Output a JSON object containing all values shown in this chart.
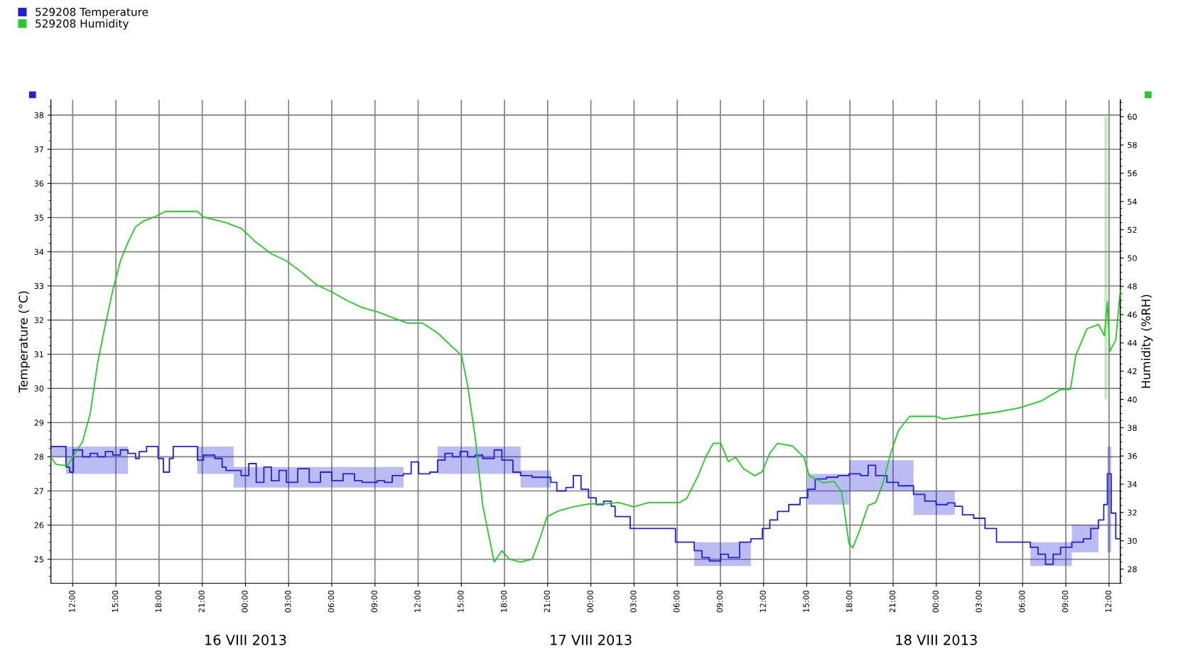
{
  "chart_data": {
    "type": "line",
    "ylabel": "Temperature (°C)",
    "y2label": "Humidity (%RH)",
    "xlim": [
      "2013-08-15T10:29",
      "2013-08-18T12:47"
    ],
    "xticks": [
      {
        "value": "2013-08-15T12:00",
        "label": "12:00"
      },
      {
        "value": "2013-08-15T15:00",
        "label": "15:00"
      },
      {
        "value": "2013-08-15T18:00",
        "label": "18:00"
      },
      {
        "value": "2013-08-15T21:00",
        "label": "21:00"
      },
      {
        "value": "2013-08-16T00:00",
        "label": "00:00"
      },
      {
        "value": "2013-08-16T03:00",
        "label": "03:00"
      },
      {
        "value": "2013-08-16T06:00",
        "label": "06:00"
      },
      {
        "value": "2013-08-16T09:00",
        "label": "09:00"
      },
      {
        "value": "2013-08-16T12:00",
        "label": "12:00"
      },
      {
        "value": "2013-08-16T15:00",
        "label": "15:00"
      },
      {
        "value": "2013-08-16T18:00",
        "label": "18:00"
      },
      {
        "value": "2013-08-16T21:00",
        "label": "21:00"
      },
      {
        "value": "2013-08-17T00:00",
        "label": "00:00"
      },
      {
        "value": "2013-08-17T03:00",
        "label": "03:00"
      },
      {
        "value": "2013-08-17T06:00",
        "label": "06:00"
      },
      {
        "value": "2013-08-17T09:00",
        "label": "09:00"
      },
      {
        "value": "2013-08-17T12:00",
        "label": "12:00"
      },
      {
        "value": "2013-08-17T15:00",
        "label": "15:00"
      },
      {
        "value": "2013-08-17T18:00",
        "label": "18:00"
      },
      {
        "value": "2013-08-17T21:00",
        "label": "21:00"
      },
      {
        "value": "2013-08-18T00:00",
        "label": "00:00"
      },
      {
        "value": "2013-08-18T03:00",
        "label": "03:00"
      },
      {
        "value": "2013-08-18T06:00",
        "label": "06:00"
      },
      {
        "value": "2013-08-18T09:00",
        "label": "09:00"
      },
      {
        "value": "2013-08-18T12:00",
        "label": "12:00"
      }
    ],
    "ylim": [
      24.3,
      38.45
    ],
    "yticks": [
      25,
      26,
      27,
      28,
      29,
      30,
      31,
      32,
      33,
      34,
      35,
      36,
      37,
      38
    ],
    "y2lim": [
      27,
      61.2
    ],
    "y2ticks": [
      28,
      30,
      32,
      34,
      36,
      38,
      40,
      42,
      44,
      46,
      48,
      50,
      52,
      54,
      56,
      58,
      60
    ],
    "grid": true,
    "legend": "top left",
    "marker": "none",
    "line_style": "solid",
    "annotations": [
      "16 VIII 2013",
      "17 VIII 2013",
      "18 VIII 2013"
    ],
    "series": [
      {
        "name": "529208 Temperature",
        "color": "#2020dd",
        "type": "step",
        "x": [
          "2013-08-15T10:29",
          "2013-08-15T10:51",
          "2013-08-15T11:22",
          "2013-08-15T11:32",
          "2013-08-15T11:47",
          "2013-08-15T12:03",
          "2013-08-15T12:41",
          "2013-08-15T13:13",
          "2013-08-15T13:44",
          "2013-08-15T14:16",
          "2013-08-15T14:47",
          "2013-08-15T15:19",
          "2013-08-15T15:50",
          "2013-08-15T16:22",
          "2013-08-15T16:37",
          "2013-08-15T17:08",
          "2013-08-15T17:40",
          "2013-08-15T17:56",
          "2013-08-15T18:18",
          "2013-08-15T18:43",
          "2013-08-15T18:59",
          "2013-08-15T20:17",
          "2013-08-15T20:40",
          "2013-08-15T21:05",
          "2013-08-15T21:52",
          "2013-08-15T22:23",
          "2013-08-15T22:39",
          "2013-08-15T23:11",
          "2013-08-15T23:42",
          "2013-08-16T00:14",
          "2013-08-16T00:45",
          "2013-08-16T01:17",
          "2013-08-16T01:48",
          "2013-08-16T02:20",
          "2013-08-16T02:51",
          "2013-08-16T03:38",
          "2013-08-16T04:26",
          "2013-08-16T05:13",
          "2013-08-16T06:00",
          "2013-08-16T06:47",
          "2013-08-16T07:35",
          "2013-08-16T08:06",
          "2013-08-16T09:09",
          "2013-08-16T09:40",
          "2013-08-16T10:12",
          "2013-08-16T10:59",
          "2013-08-16T11:31",
          "2013-08-16T12:02",
          "2013-08-16T12:49",
          "2013-08-16T13:21",
          "2013-08-16T13:52",
          "2013-08-16T14:23",
          "2013-08-16T14:55",
          "2013-08-16T15:26",
          "2013-08-16T15:58",
          "2013-08-16T16:29",
          "2013-08-16T17:17",
          "2013-08-16T17:49",
          "2013-08-16T18:35",
          "2013-08-16T19:07",
          "2013-08-16T19:55",
          "2013-08-16T20:41",
          "2013-08-16T21:13",
          "2013-08-16T21:38",
          "2013-08-16T22:16",
          "2013-08-16T22:47",
          "2013-08-16T23:19",
          "2013-08-16T23:50",
          "2013-08-17T00:22",
          "2013-08-17T00:53",
          "2013-08-17T01:25",
          "2013-08-17T01:41",
          "2013-08-17T02:28",
          "2013-08-17T02:44",
          "2013-08-17T03:31",
          "2013-08-17T05:37",
          "2013-08-17T05:53",
          "2013-08-17T06:40",
          "2013-08-17T07:11",
          "2013-08-17T07:43",
          "2013-08-17T08:14",
          "2013-08-17T09:01",
          "2013-08-17T09:33",
          "2013-08-17T10:20",
          "2013-08-17T11:07",
          "2013-08-17T11:55",
          "2013-08-17T12:26",
          "2013-08-17T12:58",
          "2013-08-17T13:45",
          "2013-08-17T14:32",
          "2013-08-17T15:04",
          "2013-08-17T15:35",
          "2013-08-17T16:22",
          "2013-08-17T17:10",
          "2013-08-17T17:56",
          "2013-08-17T18:44",
          "2013-08-17T19:16",
          "2013-08-17T19:47",
          "2013-08-17T20:34",
          "2013-08-17T21:22",
          "2013-08-17T22:25",
          "2013-08-17T23:12",
          "2013-08-17T23:59",
          "2013-08-18T00:46",
          "2013-08-18T01:17",
          "2013-08-18T01:49",
          "2013-08-18T02:36",
          "2013-08-18T03:23",
          "2013-08-18T04:11",
          "2013-08-18T04:42",
          "2013-08-18T06:01",
          "2013-08-18T06:32",
          "2013-08-18T07:04",
          "2013-08-18T07:35",
          "2013-08-18T08:07",
          "2013-08-18T08:38",
          "2013-08-18T09:25",
          "2013-08-18T10:13",
          "2013-08-18T10:44",
          "2013-08-18T11:16",
          "2013-08-18T11:38",
          "2013-08-18T11:53",
          "2013-08-18T12:09",
          "2013-08-18T12:28",
          "2013-08-18T12:47"
        ],
        "values": [
          28.3,
          28.3,
          28.3,
          27.7,
          27.55,
          28.2,
          28.0,
          28.1,
          28.0,
          28.15,
          28.05,
          28.2,
          28.1,
          27.95,
          28.15,
          28.3,
          28.3,
          27.95,
          27.55,
          27.95,
          28.3,
          28.3,
          27.9,
          28.05,
          27.95,
          27.7,
          27.6,
          27.6,
          27.45,
          27.8,
          27.25,
          27.7,
          27.3,
          27.6,
          27.25,
          27.65,
          27.25,
          27.55,
          27.3,
          27.5,
          27.3,
          27.25,
          27.3,
          27.25,
          27.45,
          27.5,
          27.85,
          27.5,
          27.55,
          27.9,
          28.1,
          28.0,
          28.15,
          28.0,
          28.05,
          27.95,
          28.2,
          27.9,
          27.55,
          27.45,
          27.4,
          27.4,
          27.25,
          27.0,
          27.1,
          27.45,
          27.05,
          26.8,
          26.6,
          26.7,
          26.55,
          26.25,
          26.25,
          25.9,
          25.9,
          25.9,
          25.5,
          25.5,
          25.25,
          25.05,
          24.95,
          25.15,
          25.05,
          25.5,
          25.6,
          25.9,
          26.15,
          26.4,
          26.6,
          26.8,
          27.05,
          27.35,
          27.4,
          27.45,
          27.5,
          27.45,
          27.75,
          27.45,
          27.25,
          27.15,
          26.9,
          26.7,
          26.6,
          26.65,
          26.55,
          26.3,
          26.2,
          25.9,
          25.5,
          25.5,
          25.5,
          25.35,
          25.15,
          24.85,
          25.15,
          25.35,
          25.5,
          25.6,
          25.9,
          26.15,
          26.6,
          27.5,
          26.35,
          25.6,
          27.25
        ],
        "lower": [
          28.0,
          28.0,
          28.0,
          27.5,
          27.5,
          27.5,
          27.5,
          27.5,
          27.5,
          27.5,
          27.5,
          27.5,
          27.5,
          null,
          null,
          null,
          null,
          null,
          null,
          null,
          null,
          null,
          27.5,
          27.5,
          27.5,
          27.5,
          27.5,
          27.1,
          27.1,
          27.1,
          27.1,
          27.1,
          27.1,
          27.1,
          27.1,
          27.1,
          27.1,
          27.1,
          27.1,
          27.1,
          27.1,
          27.1,
          27.1,
          27.1,
          27.1,
          27.1,
          null,
          null,
          null,
          27.5,
          27.5,
          27.5,
          27.5,
          27.5,
          27.5,
          27.5,
          27.5,
          27.5,
          27.5,
          27.1,
          27.1,
          27.1,
          27.1,
          null,
          null,
          null,
          null,
          null,
          null,
          null,
          null,
          null,
          null,
          null,
          null,
          null,
          null,
          null,
          24.8,
          24.8,
          24.8,
          24.8,
          24.8,
          24.8,
          24.8,
          null,
          null,
          null,
          null,
          null,
          26.6,
          26.6,
          26.6,
          26.6,
          27.0,
          27.0,
          27.0,
          27.0,
          27.0,
          27.0,
          26.3,
          26.3,
          26.3,
          26.3,
          26.3,
          null,
          null,
          null,
          null,
          null,
          null,
          24.8,
          24.8,
          24.8,
          24.8,
          24.8,
          25.2,
          25.2,
          25.2,
          25.2,
          null,
          25.2,
          25.2,
          null,
          null
        ],
        "upper": [
          28.3,
          28.3,
          28.3,
          28.3,
          28.3,
          28.3,
          28.3,
          28.3,
          28.3,
          28.3,
          28.3,
          28.3,
          28.3,
          null,
          null,
          null,
          null,
          null,
          null,
          null,
          null,
          null,
          28.3,
          28.3,
          28.3,
          28.3,
          28.3,
          27.7,
          27.7,
          27.7,
          27.7,
          27.7,
          27.7,
          27.7,
          27.7,
          27.7,
          27.7,
          27.7,
          27.7,
          27.7,
          27.7,
          27.7,
          27.7,
          27.7,
          27.7,
          27.7,
          null,
          null,
          null,
          28.3,
          28.3,
          28.3,
          28.3,
          28.3,
          28.3,
          28.3,
          28.3,
          28.3,
          28.3,
          27.6,
          27.6,
          27.6,
          27.6,
          null,
          null,
          null,
          null,
          null,
          null,
          null,
          null,
          null,
          null,
          null,
          null,
          null,
          null,
          null,
          25.5,
          25.5,
          25.5,
          25.5,
          25.5,
          25.5,
          25.5,
          null,
          null,
          null,
          null,
          null,
          27.5,
          27.5,
          27.5,
          27.5,
          27.9,
          27.9,
          27.9,
          27.9,
          27.9,
          27.9,
          27.0,
          27.0,
          27.0,
          27.0,
          27.0,
          null,
          null,
          null,
          null,
          null,
          null,
          25.5,
          25.5,
          25.5,
          25.5,
          25.5,
          26.0,
          26.0,
          26.0,
          26.0,
          null,
          28.3,
          28.3,
          null,
          null
        ]
      },
      {
        "name": "529208 Humidity",
        "color": "#22cc22",
        "axis": "y2",
        "x": [
          "2013-08-15T10:29",
          "2013-08-15T10:51",
          "2013-08-15T11:38",
          "2013-08-15T12:10",
          "2013-08-15T12:41",
          "2013-08-15T13:13",
          "2013-08-15T13:44",
          "2013-08-15T14:16",
          "2013-08-15T14:47",
          "2013-08-15T15:19",
          "2013-08-15T15:50",
          "2013-08-15T16:22",
          "2013-08-15T16:53",
          "2013-08-15T17:40",
          "2013-08-15T18:27",
          "2013-08-15T20:40",
          "2013-08-15T21:05",
          "2013-08-15T22:39",
          "2013-08-15T23:42",
          "2013-08-16T00:45",
          "2013-08-16T01:48",
          "2013-08-16T02:51",
          "2013-08-16T03:54",
          "2013-08-16T04:57",
          "2013-08-16T06:00",
          "2013-08-16T07:03",
          "2013-08-16T08:06",
          "2013-08-16T09:09",
          "2013-08-16T10:12",
          "2013-08-16T11:15",
          "2013-08-16T12:18",
          "2013-08-16T13:21",
          "2013-08-16T14:23",
          "2013-08-16T15:01",
          "2013-08-16T15:26",
          "2013-08-16T15:58",
          "2013-08-16T16:29",
          "2013-08-16T17:17",
          "2013-08-16T17:49",
          "2013-08-16T18:20",
          "2013-08-16T19:07",
          "2013-08-16T19:55",
          "2013-08-16T20:26",
          "2013-08-16T20:57",
          "2013-08-16T21:44",
          "2013-08-16T22:47",
          "2013-08-16T23:50",
          "2013-08-17T00:53",
          "2013-08-17T01:56",
          "2013-08-17T02:59",
          "2013-08-17T04:02",
          "2013-08-17T05:05",
          "2013-08-17T06:08",
          "2013-08-17T06:40",
          "2013-08-17T07:27",
          "2013-08-17T07:58",
          "2013-08-17T08:30",
          "2013-08-17T09:01",
          "2013-08-17T09:33",
          "2013-08-17T10:04",
          "2013-08-17T10:36",
          "2013-08-17T11:23",
          "2013-08-17T11:55",
          "2013-08-17T12:26",
          "2013-08-17T12:58",
          "2013-08-17T14:01",
          "2013-08-17T14:48",
          "2013-08-17T15:10",
          "2013-08-17T16:07",
          "2013-08-17T16:53",
          "2013-08-17T17:25",
          "2013-08-17T17:56",
          "2013-08-17T18:12",
          "2013-08-17T18:44",
          "2013-08-17T19:16",
          "2013-08-17T19:47",
          "2013-08-17T20:18",
          "2013-08-17T20:50",
          "2013-08-17T21:22",
          "2013-08-17T22:09",
          "2013-08-17T23:59",
          "2013-08-18T00:30",
          "2013-08-18T02:36",
          "2013-08-18T04:11",
          "2013-08-18T05:45",
          "2013-08-18T07:19",
          "2013-08-18T08:38",
          "2013-08-18T09:19",
          "2013-08-18T09:41",
          "2013-08-18T10:28",
          "2013-08-18T11:16",
          "2013-08-18T11:41",
          "2013-08-18T11:53",
          "2013-08-18T12:03",
          "2013-08-18T12:28",
          "2013-08-18T12:47"
        ],
        "values": [
          35.9,
          35.4,
          35.3,
          36.2,
          37.0,
          39.0,
          42.6,
          45.3,
          47.7,
          49.8,
          51.1,
          52.2,
          52.6,
          52.9,
          53.3,
          53.3,
          52.9,
          52.5,
          52.1,
          51.1,
          50.3,
          49.8,
          49.0,
          48.1,
          47.6,
          47.0,
          46.5,
          46.2,
          45.8,
          45.4,
          45.4,
          44.7,
          43.7,
          43.1,
          41.0,
          37.3,
          32.5,
          28.5,
          29.3,
          28.7,
          28.5,
          28.7,
          30.1,
          31.7,
          32.1,
          32.4,
          32.6,
          32.6,
          32.7,
          32.4,
          32.7,
          32.7,
          32.7,
          33.0,
          34.6,
          35.9,
          36.9,
          36.9,
          35.6,
          35.9,
          35.1,
          34.6,
          34.9,
          36.2,
          36.9,
          36.7,
          35.9,
          34.6,
          34.1,
          34.2,
          33.5,
          29.8,
          29.5,
          30.9,
          32.5,
          32.7,
          34.1,
          36.2,
          37.8,
          38.8,
          38.8,
          38.6,
          38.9,
          39.1,
          39.4,
          39.9,
          40.7,
          40.7,
          43.1,
          45.0,
          45.3,
          44.5,
          46.9,
          43.4,
          44.2,
          47.7
        ],
        "lower": [
          null,
          null,
          null,
          null,
          null,
          null,
          null,
          null,
          null,
          null,
          null,
          null,
          null,
          null,
          null,
          null,
          null,
          null,
          null,
          null,
          null,
          null,
          null,
          null,
          null,
          null,
          null,
          null,
          null,
          null,
          null,
          null,
          null,
          null,
          null,
          null,
          null,
          null,
          null,
          null,
          null,
          null,
          null,
          null,
          null,
          null,
          null,
          null,
          null,
          null,
          null,
          null,
          null,
          null,
          null,
          null,
          null,
          null,
          null,
          null,
          null,
          null,
          null,
          null,
          null,
          null,
          null,
          null,
          null,
          null,
          null,
          null,
          null,
          null,
          null,
          null,
          null,
          null,
          null,
          null,
          null,
          null,
          null,
          null,
          null,
          null,
          null,
          null,
          null,
          null,
          null,
          40.0,
          40.0,
          null,
          null,
          null
        ],
        "upper": [
          null,
          null,
          null,
          null,
          null,
          null,
          null,
          null,
          null,
          null,
          null,
          null,
          null,
          null,
          null,
          null,
          null,
          null,
          null,
          null,
          null,
          null,
          null,
          null,
          null,
          null,
          null,
          null,
          null,
          null,
          null,
          null,
          null,
          null,
          null,
          null,
          null,
          null,
          null,
          null,
          null,
          null,
          null,
          null,
          null,
          null,
          null,
          null,
          null,
          null,
          null,
          null,
          null,
          null,
          null,
          null,
          null,
          null,
          null,
          null,
          null,
          null,
          null,
          null,
          null,
          null,
          null,
          null,
          null,
          null,
          null,
          null,
          null,
          null,
          null,
          null,
          null,
          null,
          null,
          null,
          null,
          null,
          null,
          null,
          null,
          null,
          null,
          null,
          null,
          null,
          null,
          60.0,
          60.0,
          null,
          null,
          null
        ]
      }
    ]
  }
}
